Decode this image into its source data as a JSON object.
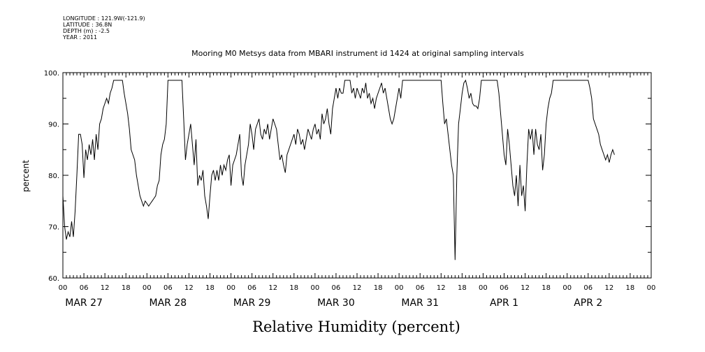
{
  "meta": {
    "longitude": "LONGITUDE : 121.9W(-121.9)",
    "latitude": "LATITUDE : 36.8N",
    "depth": "DEPTH (m) : -2.5",
    "year": "YEAR : 2011"
  },
  "chart_data": {
    "type": "line",
    "title": "Mooring M0 Metsys data from MBARI instrument id 1424 at original sampling intervals",
    "xlabel": "Relative Humidity (percent)",
    "ylabel": "percent",
    "ylim": [
      60,
      100
    ],
    "xlim": [
      "2011-03-27 00:00",
      "2011-04-03 00:00"
    ],
    "grid": false,
    "y_ticks": [
      "60.",
      "70.",
      "80.",
      "90.",
      "100."
    ],
    "hour_ticks": [
      "00",
      "06",
      "12",
      "18",
      "00",
      "06",
      "12",
      "18",
      "00",
      "06",
      "12",
      "18",
      "00",
      "06",
      "12",
      "18",
      "00",
      "06",
      "12",
      "18",
      "00",
      "06",
      "12",
      "18",
      "00",
      "06",
      "12",
      "18",
      "00"
    ],
    "day_labels": [
      "MAR 27",
      "MAR 28",
      "MAR 29",
      "MAR 30",
      "MAR 31",
      "APR  1",
      "APR  2"
    ],
    "series": [
      {
        "x_hours_since": "2011-03-27 00:00",
        "points": [
          [
            0,
            76
          ],
          [
            0.5,
            70
          ],
          [
            1,
            67.5
          ],
          [
            1.5,
            69
          ],
          [
            2,
            68
          ],
          [
            2.5,
            71
          ],
          [
            3,
            68
          ],
          [
            3.5,
            73
          ],
          [
            4,
            80
          ],
          [
            4.5,
            88
          ],
          [
            5,
            88
          ],
          [
            5.5,
            86
          ],
          [
            6,
            79.5
          ],
          [
            6.5,
            85
          ],
          [
            7,
            83
          ],
          [
            7.5,
            86
          ],
          [
            8,
            84
          ],
          [
            8.5,
            87
          ],
          [
            9,
            83
          ],
          [
            9.5,
            88
          ],
          [
            10,
            85
          ],
          [
            10.5,
            90
          ],
          [
            11,
            91
          ],
          [
            11.5,
            93
          ],
          [
            12,
            94
          ],
          [
            12.5,
            95
          ],
          [
            13,
            94
          ],
          [
            13.5,
            96
          ],
          [
            14,
            97
          ],
          [
            14.5,
            98.5
          ],
          [
            17,
            98.5
          ],
          [
            17.5,
            96
          ],
          [
            18,
            94
          ],
          [
            18.5,
            92
          ],
          [
            19,
            89
          ],
          [
            19.5,
            85
          ],
          [
            20,
            84
          ],
          [
            20.5,
            83
          ],
          [
            21,
            80
          ],
          [
            21.5,
            78
          ],
          [
            22,
            76
          ],
          [
            22.5,
            75
          ],
          [
            23,
            74
          ],
          [
            23.5,
            75
          ],
          [
            24,
            74.5
          ],
          [
            24.5,
            74
          ],
          [
            25,
            74.5
          ],
          [
            25.5,
            75
          ],
          [
            26,
            75.5
          ],
          [
            26.5,
            76
          ],
          [
            27,
            78
          ],
          [
            27.5,
            79
          ],
          [
            28,
            84
          ],
          [
            28.5,
            86
          ],
          [
            29,
            87
          ],
          [
            29.5,
            90
          ],
          [
            30,
            98.5
          ],
          [
            34,
            98.5
          ],
          [
            34.5,
            91
          ],
          [
            35,
            83
          ],
          [
            35.5,
            86
          ],
          [
            36,
            88
          ],
          [
            36.5,
            90
          ],
          [
            37,
            86
          ],
          [
            37.5,
            82
          ],
          [
            38,
            87
          ],
          [
            38.5,
            78
          ],
          [
            39,
            80
          ],
          [
            39.5,
            79
          ],
          [
            40,
            81
          ],
          [
            40.5,
            76
          ],
          [
            41,
            74
          ],
          [
            41.5,
            71.5
          ],
          [
            42,
            76
          ],
          [
            42.5,
            80
          ],
          [
            43,
            81
          ],
          [
            43.5,
            79
          ],
          [
            44,
            81
          ],
          [
            44.5,
            79
          ],
          [
            45,
            82
          ],
          [
            45.5,
            80
          ],
          [
            46,
            82
          ],
          [
            46.5,
            81
          ],
          [
            47,
            83
          ],
          [
            47.5,
            84
          ],
          [
            48,
            78
          ],
          [
            48.5,
            82
          ],
          [
            49,
            83
          ],
          [
            49.5,
            84
          ],
          [
            50,
            86
          ],
          [
            50.5,
            88
          ],
          [
            51,
            80
          ],
          [
            51.5,
            78
          ],
          [
            52,
            82
          ],
          [
            52.5,
            84
          ],
          [
            53,
            86
          ],
          [
            53.5,
            90
          ],
          [
            54,
            88
          ],
          [
            54.5,
            85
          ],
          [
            55,
            89
          ],
          [
            55.5,
            90
          ],
          [
            56,
            91
          ],
          [
            56.5,
            88
          ],
          [
            57,
            87
          ],
          [
            57.5,
            89
          ],
          [
            58,
            88
          ],
          [
            58.5,
            90
          ],
          [
            59,
            87
          ],
          [
            59.5,
            89
          ],
          [
            60,
            91
          ],
          [
            60.5,
            90
          ],
          [
            61,
            89
          ],
          [
            61.5,
            86
          ],
          [
            62,
            83
          ],
          [
            62.5,
            84
          ],
          [
            63,
            82
          ],
          [
            63.5,
            80.5
          ],
          [
            64,
            84
          ],
          [
            64.5,
            85
          ],
          [
            65,
            86
          ],
          [
            65.5,
            87
          ],
          [
            66,
            88
          ],
          [
            66.5,
            86
          ],
          [
            67,
            89
          ],
          [
            67.5,
            88
          ],
          [
            68,
            86
          ],
          [
            68.5,
            87
          ],
          [
            69,
            85
          ],
          [
            69.5,
            87
          ],
          [
            70,
            89
          ],
          [
            70.5,
            88
          ],
          [
            71,
            87
          ],
          [
            71.5,
            89
          ],
          [
            72,
            90
          ],
          [
            72.5,
            88
          ],
          [
            73,
            89
          ],
          [
            73.5,
            87
          ],
          [
            74,
            92
          ],
          [
            74.5,
            90
          ],
          [
            75,
            91
          ],
          [
            75.5,
            93
          ],
          [
            76,
            90
          ],
          [
            76.5,
            88
          ],
          [
            77,
            93
          ],
          [
            77.5,
            95
          ],
          [
            78,
            97
          ],
          [
            78.5,
            95
          ],
          [
            79,
            97
          ],
          [
            79.5,
            96
          ],
          [
            80,
            96
          ],
          [
            80.5,
            98.5
          ],
          [
            82,
            98.5
          ],
          [
            82.5,
            96
          ],
          [
            83,
            97
          ],
          [
            83.5,
            95
          ],
          [
            84,
            97
          ],
          [
            84.5,
            96
          ],
          [
            85,
            95
          ],
          [
            85.5,
            97
          ],
          [
            86,
            96
          ],
          [
            86.5,
            98
          ],
          [
            87,
            95
          ],
          [
            87.5,
            96
          ],
          [
            88,
            94
          ],
          [
            88.5,
            95
          ],
          [
            89,
            93
          ],
          [
            89.5,
            95
          ],
          [
            90,
            96
          ],
          [
            90.5,
            97
          ],
          [
            91,
            98
          ],
          [
            91.5,
            96
          ],
          [
            92,
            97
          ],
          [
            92.5,
            95
          ],
          [
            93,
            93
          ],
          [
            93.5,
            91
          ],
          [
            94,
            90
          ],
          [
            94.5,
            91
          ],
          [
            95,
            93
          ],
          [
            95.5,
            95
          ],
          [
            96,
            97
          ],
          [
            96.5,
            95
          ],
          [
            97,
            98.5
          ],
          [
            108,
            98.5
          ],
          [
            108.5,
            94
          ],
          [
            109,
            90
          ],
          [
            109.5,
            91
          ],
          [
            110,
            88
          ],
          [
            110.5,
            85
          ],
          [
            111,
            82
          ],
          [
            111.5,
            80
          ],
          [
            112,
            63.5
          ],
          [
            112.5,
            80
          ],
          [
            113,
            90
          ],
          [
            113.5,
            93
          ],
          [
            114,
            96
          ],
          [
            114.5,
            98
          ],
          [
            115,
            98.5
          ],
          [
            115.5,
            97
          ],
          [
            116,
            95
          ],
          [
            116.5,
            96
          ],
          [
            117,
            94
          ],
          [
            117.5,
            93.5
          ],
          [
            118,
            93.5
          ],
          [
            118.5,
            93
          ],
          [
            119,
            95
          ],
          [
            119.5,
            98.5
          ],
          [
            124,
            98.5
          ],
          [
            124.5,
            96
          ],
          [
            125,
            92
          ],
          [
            125.5,
            88
          ],
          [
            126,
            84
          ],
          [
            126.5,
            82
          ],
          [
            127,
            89
          ],
          [
            127.5,
            86
          ],
          [
            128,
            82
          ],
          [
            128.5,
            78
          ],
          [
            129,
            76
          ],
          [
            129.5,
            80
          ],
          [
            130,
            74
          ],
          [
            130.5,
            82
          ],
          [
            131,
            76
          ],
          [
            131.5,
            78
          ],
          [
            132,
            73
          ],
          [
            132.5,
            82
          ],
          [
            133,
            89
          ],
          [
            133.5,
            87
          ],
          [
            134,
            89
          ],
          [
            134.5,
            84
          ],
          [
            135,
            89
          ],
          [
            135.5,
            86
          ],
          [
            136,
            85
          ],
          [
            136.5,
            88
          ],
          [
            137,
            81
          ],
          [
            137.5,
            84
          ],
          [
            138,
            90
          ],
          [
            138.5,
            93
          ],
          [
            139,
            95
          ],
          [
            139.5,
            96
          ],
          [
            140,
            98.5
          ],
          [
            150,
            98.5
          ],
          [
            150.5,
            97
          ],
          [
            151,
            95
          ],
          [
            151.5,
            91
          ],
          [
            152,
            90
          ],
          [
            152.5,
            89
          ],
          [
            153,
            88
          ],
          [
            153.5,
            86
          ],
          [
            154,
            85
          ],
          [
            154.5,
            84
          ],
          [
            155,
            83
          ],
          [
            155.5,
            84
          ],
          [
            156,
            82.5
          ],
          [
            156.5,
            84
          ],
          [
            157,
            85
          ],
          [
            157.5,
            84
          ]
        ]
      }
    ]
  }
}
